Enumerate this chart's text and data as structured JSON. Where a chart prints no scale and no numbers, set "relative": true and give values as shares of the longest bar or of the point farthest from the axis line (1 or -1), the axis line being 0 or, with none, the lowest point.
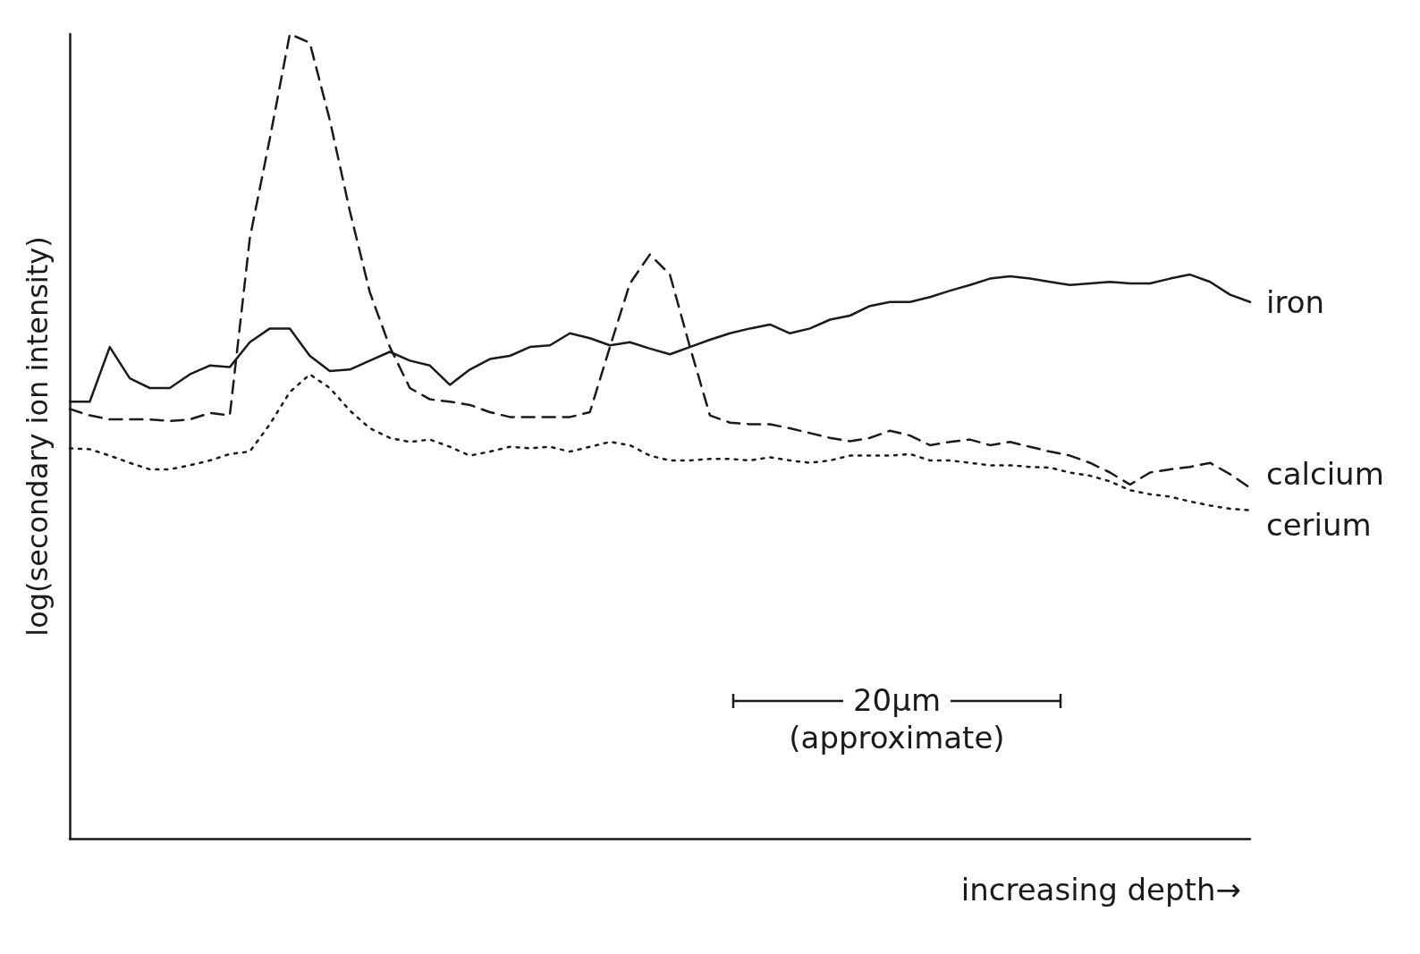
{
  "chart_data": {
    "type": "line",
    "relative": true,
    "xlabel": "increasing depth→",
    "ylabel": "log(secondary ion intensity)",
    "legend": false,
    "grid": false,
    "marker": "none",
    "annotations": [
      "20μm",
      "(approximate)"
    ],
    "categories": [
      null,
      null,
      null,
      null,
      null,
      null,
      null,
      null,
      null,
      null,
      null,
      null,
      null,
      null,
      null,
      null,
      null,
      null,
      null,
      null,
      null,
      null,
      null,
      null,
      null,
      null,
      null,
      null,
      null,
      null,
      null,
      null,
      null,
      null,
      null,
      null,
      null,
      null,
      null,
      null,
      null,
      null,
      null,
      null,
      null,
      null,
      null,
      null,
      null,
      null,
      null,
      null,
      null,
      null,
      null,
      null,
      null,
      null,
      null,
      null
    ],
    "series": [
      {
        "name": "iron",
        "color": "#1a1a1a",
        "line_style": "solid",
        "values": [
          0.543,
          0.543,
          0.611,
          0.572,
          0.56,
          0.56,
          0.577,
          0.588,
          0.586,
          0.617,
          0.634,
          0.634,
          0.6,
          0.581,
          0.583,
          0.594,
          0.605,
          0.594,
          0.588,
          0.564,
          0.583,
          0.596,
          0.6,
          0.611,
          0.613,
          0.628,
          0.622,
          0.613,
          0.617,
          0.609,
          0.602,
          0.611,
          0.62,
          0.628,
          0.634,
          0.639,
          0.628,
          0.634,
          0.645,
          0.65,
          0.662,
          0.667,
          0.667,
          0.673,
          0.681,
          0.688,
          0.696,
          0.699,
          0.696,
          0.692,
          0.688,
          0.69,
          0.692,
          0.69,
          0.69,
          0.696,
          0.701,
          0.692,
          0.676,
          0.667
        ]
      },
      {
        "name": "calcium",
        "color": "#1a1a1a",
        "line_style": "dashed",
        "values": [
          0.534,
          0.526,
          0.521,
          0.521,
          0.521,
          0.519,
          0.521,
          0.529,
          0.526,
          0.746,
          0.87,
          1.0,
          0.989,
          0.893,
          0.78,
          0.679,
          0.611,
          0.56,
          0.546,
          0.543,
          0.539,
          0.53,
          0.524,
          0.524,
          0.524,
          0.524,
          0.53,
          0.611,
          0.69,
          0.726,
          0.701,
          0.611,
          0.526,
          0.517,
          0.515,
          0.515,
          0.51,
          0.504,
          0.498,
          0.494,
          0.498,
          0.507,
          0.501,
          0.489,
          0.493,
          0.496,
          0.489,
          0.493,
          0.487,
          0.481,
          0.476,
          0.467,
          0.455,
          0.44,
          0.455,
          0.459,
          0.462,
          0.467,
          0.453,
          0.436
        ]
      },
      {
        "name": "cerium",
        "color": "#1a1a1a",
        "line_style": "dotted",
        "values": [
          0.485,
          0.484,
          0.476,
          0.467,
          0.459,
          0.459,
          0.464,
          0.47,
          0.478,
          0.481,
          0.515,
          0.555,
          0.577,
          0.56,
          0.532,
          0.51,
          0.498,
          0.493,
          0.496,
          0.487,
          0.476,
          0.481,
          0.487,
          0.485,
          0.487,
          0.481,
          0.487,
          0.493,
          0.489,
          0.476,
          0.47,
          0.47,
          0.472,
          0.472,
          0.47,
          0.474,
          0.47,
          0.467,
          0.47,
          0.476,
          0.476,
          0.476,
          0.478,
          0.47,
          0.47,
          0.467,
          0.464,
          0.464,
          0.462,
          0.461,
          0.455,
          0.451,
          0.444,
          0.433,
          0.428,
          0.425,
          0.419,
          0.414,
          0.41,
          0.408
        ]
      }
    ]
  }
}
